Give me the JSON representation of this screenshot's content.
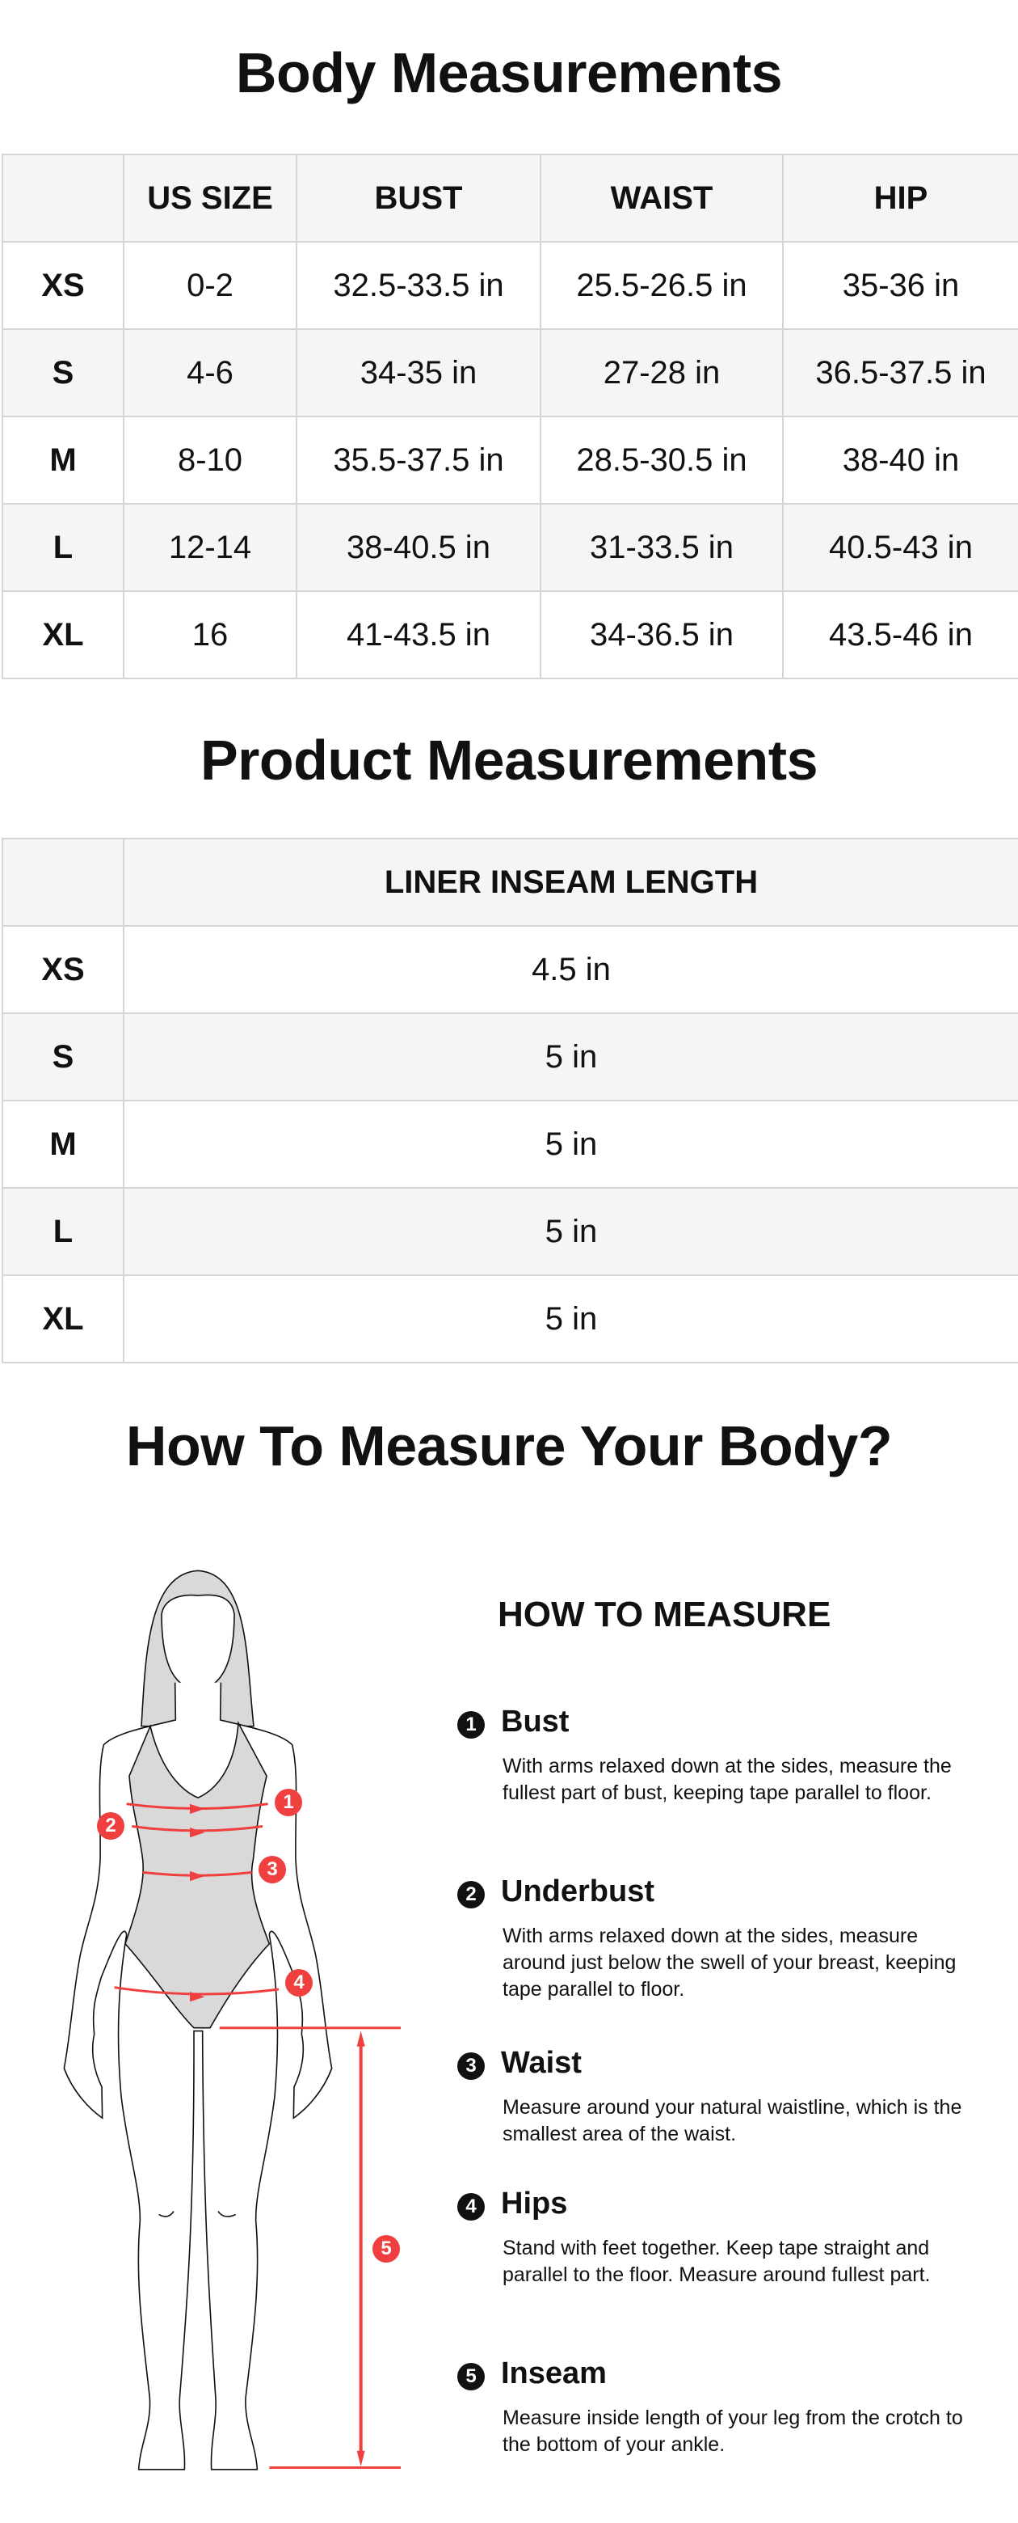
{
  "body_section": {
    "title": "Body Measurements",
    "headers": [
      "",
      "US SIZE",
      "BUST",
      "WAIST",
      "HIP"
    ],
    "rows": [
      [
        "XS",
        "0-2",
        "32.5-33.5 in",
        "25.5-26.5 in",
        "35-36 in"
      ],
      [
        "S",
        "4-6",
        "34-35 in",
        "27-28 in",
        "36.5-37.5 in"
      ],
      [
        "M",
        "8-10",
        "35.5-37.5 in",
        "28.5-30.5 in",
        "38-40 in"
      ],
      [
        "L",
        "12-14",
        "38-40.5 in",
        "31-33.5 in",
        "40.5-43 in"
      ],
      [
        "XL",
        "16",
        "41-43.5 in",
        "34-36.5 in",
        "43.5-46 in"
      ]
    ]
  },
  "product_section": {
    "title": "Product Measurements",
    "headers": [
      "",
      "LINER INSEAM LENGTH"
    ],
    "rows": [
      [
        "XS",
        "4.5 in"
      ],
      [
        "S",
        "5 in"
      ],
      [
        "M",
        "5 in"
      ],
      [
        "L",
        "5 in"
      ],
      [
        "XL",
        "5 in"
      ]
    ]
  },
  "measure_section": {
    "title": "How To Measure Your Body?",
    "subtitle": "HOW TO MEASURE",
    "items": [
      {
        "num": "1",
        "head": "Bust",
        "desc": "With arms relaxed down at the sides, measure the fullest part of bust, keeping tape parallel to floor."
      },
      {
        "num": "2",
        "head": "Underbust",
        "desc": "With arms relaxed down at the sides, measure around just below the swell of your breast, keeping tape parallel to floor."
      },
      {
        "num": "3",
        "head": "Waist",
        "desc": "Measure around your natural waistline, which is the smallest area of the waist."
      },
      {
        "num": "4",
        "head": "Hips",
        "desc": "Stand with feet together. Keep tape straight and parallel to the floor. Measure around fullest part."
      },
      {
        "num": "5",
        "head": "Inseam",
        "desc": "Measure inside length of your leg from the crotch to the bottom of your ankle."
      }
    ],
    "badges": [
      "1",
      "2",
      "3",
      "4",
      "5"
    ]
  },
  "colors": {
    "accent_red": "#ef3f3f",
    "header_gray": "#f4f5f7",
    "border": "#d4d5d8",
    "figure_fill": "#d9d9d9"
  }
}
